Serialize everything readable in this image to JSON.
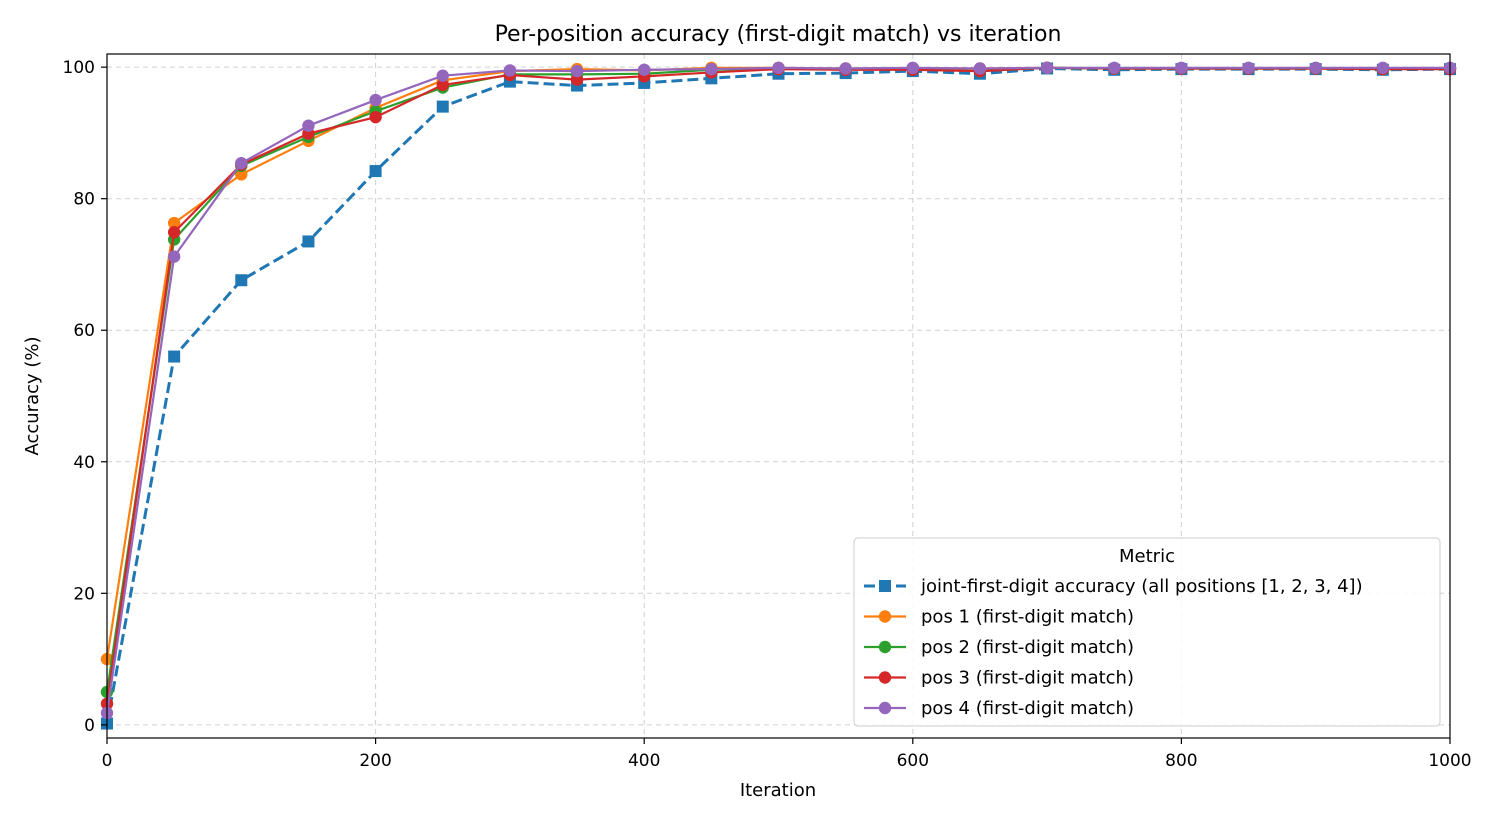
{
  "chart_data": {
    "type": "line",
    "title": "Per-position accuracy (first-digit match) vs iteration",
    "xlabel": "Iteration",
    "ylabel": "Accuracy (%)",
    "xlim": [
      0,
      1000
    ],
    "ylim": [
      -2,
      102
    ],
    "xticks": [
      0,
      200,
      400,
      600,
      800,
      1000
    ],
    "yticks": [
      0,
      20,
      40,
      60,
      80,
      100
    ],
    "grid": true,
    "legend": {
      "title": "Metric",
      "placement": "lower-right"
    },
    "x": [
      0,
      50,
      100,
      150,
      200,
      250,
      300,
      350,
      400,
      450,
      500,
      550,
      600,
      650,
      700,
      750,
      800,
      850,
      900,
      950,
      1000
    ],
    "series": [
      {
        "name": "joint-first-digit accuracy (all positions [1, 2, 3, 4])",
        "color": "#1f77b4",
        "linestyle": "dashed",
        "marker": "square",
        "values": [
          0.2,
          56.0,
          67.6,
          73.5,
          84.2,
          94.0,
          97.8,
          97.2,
          97.6,
          98.3,
          99.0,
          99.1,
          99.4,
          99.0,
          99.8,
          99.6,
          99.7,
          99.7,
          99.7,
          99.6,
          99.7
        ]
      },
      {
        "name": "pos 1 (first-digit match)",
        "color": "#ff7f0e",
        "linestyle": "solid",
        "marker": "circle",
        "values": [
          10.0,
          76.3,
          83.7,
          88.8,
          93.8,
          98.0,
          99.4,
          99.7,
          99.5,
          99.9,
          99.9,
          99.8,
          99.8,
          99.8,
          99.9,
          99.8,
          99.8,
          99.8,
          99.8,
          99.8,
          99.8
        ]
      },
      {
        "name": "pos 2 (first-digit match)",
        "color": "#2ca02c",
        "linestyle": "solid",
        "marker": "circle",
        "values": [
          5.0,
          73.8,
          85.0,
          89.4,
          93.3,
          96.9,
          98.9,
          98.9,
          99.0,
          99.6,
          99.8,
          99.7,
          99.7,
          99.4,
          99.9,
          99.8,
          99.8,
          99.8,
          99.8,
          99.7,
          99.8
        ]
      },
      {
        "name": "pos 3 (first-digit match)",
        "color": "#d62728",
        "linestyle": "solid",
        "marker": "circle",
        "values": [
          3.2,
          74.9,
          85.2,
          89.9,
          92.4,
          97.3,
          98.8,
          98.1,
          98.6,
          99.2,
          99.7,
          99.6,
          99.6,
          99.4,
          99.9,
          99.8,
          99.8,
          99.8,
          99.8,
          99.7,
          99.7
        ]
      },
      {
        "name": "pos 4 (first-digit match)",
        "color": "#9467bd",
        "linestyle": "solid",
        "marker": "circle",
        "values": [
          1.8,
          71.2,
          85.4,
          91.1,
          95.0,
          98.7,
          99.5,
          99.4,
          99.6,
          99.7,
          99.9,
          99.8,
          99.9,
          99.8,
          99.9,
          99.9,
          99.9,
          99.9,
          99.9,
          99.9,
          99.9
        ]
      }
    ]
  }
}
